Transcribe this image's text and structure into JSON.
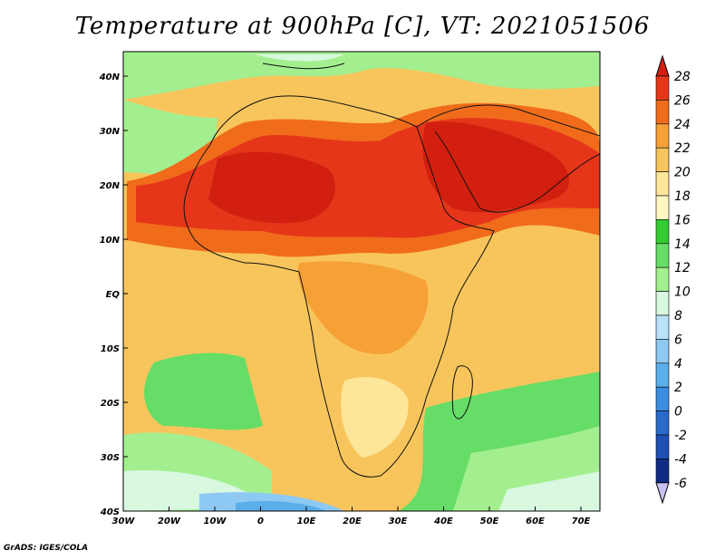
{
  "title": "Temperature at 900hPa [C], VT: 2021051506",
  "footer": "GrADS: IGES/COLA",
  "map": {
    "lon_labels": [
      "30W",
      "20W",
      "10W",
      "0",
      "10E",
      "20E",
      "30E",
      "40E",
      "50E",
      "60E",
      "70E"
    ],
    "lat_labels": [
      "40N",
      "30N",
      "20N",
      "10N",
      "EQ",
      "10S",
      "20S",
      "30S",
      "40S"
    ]
  },
  "colorbar": {
    "levels": [
      "28",
      "26",
      "24",
      "22",
      "20",
      "18",
      "16",
      "14",
      "12",
      "10",
      "8",
      "6",
      "4",
      "2",
      "0",
      "-2",
      "-4",
      "-6"
    ],
    "colors": [
      "#d21f0f",
      "#e6361a",
      "#f06c1b",
      "#f5a136",
      "#f8c55c",
      "#fde69a",
      "#fff6c2",
      "#33cc33",
      "#66dd66",
      "#a3ef8f",
      "#d8f8e0",
      "#b9e2f8",
      "#8dc9f2",
      "#5aaee9",
      "#3a8de0",
      "#2a6acd",
      "#1f4fb5",
      "#102b84",
      "#c8c0f0"
    ]
  }
}
